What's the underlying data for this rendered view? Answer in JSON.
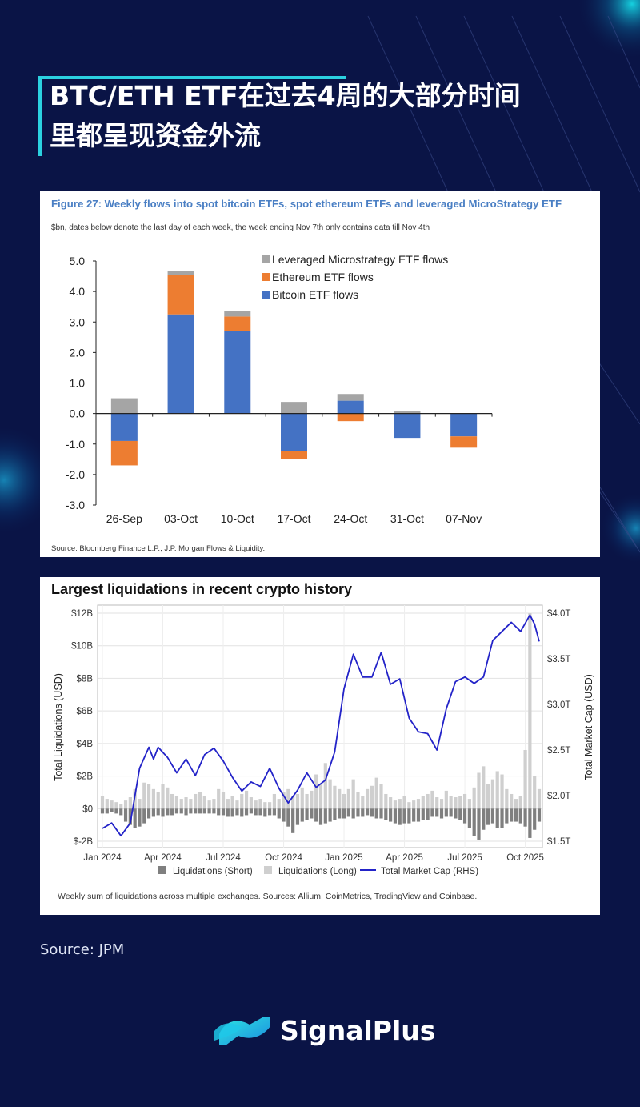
{
  "page": {
    "title_lines": [
      "BTC/ETH ETF在过去4周的大部分时间",
      "里都呈现资金外流"
    ],
    "source_note": "Source: JPM",
    "brand": "SignalPlus",
    "colors": {
      "background": "#0a1446",
      "accent": "#2bd1e0"
    }
  },
  "figure1": {
    "title": "Figure 27: Weekly flows into spot bitcoin ETFs, spot ethereum ETFs and leveraged MicroStrategy ETF",
    "subtitle": "$bn, dates below denote the last day of each week, the week ending Nov 7th only contains data till Nov 4th",
    "source": "Source: Bloomberg Finance L.P., J.P. Morgan Flows & Liquidity."
  },
  "figure2": {
    "title": "Largest liquidations in recent crypto history",
    "source": "Weekly sum of liquidations across multiple exchanges. Sources: Allium, CoinMetrics, TradingView and Coinbase."
  },
  "chart_data": [
    {
      "type": "bar",
      "stacked": true,
      "categories": [
        "26-Sep",
        "03-Oct",
        "10-Oct",
        "17-Oct",
        "24-Oct",
        "31-Oct",
        "07-Nov"
      ],
      "series": [
        {
          "name": "Bitcoin ETF flows",
          "color": "#4472c4",
          "values": [
            -0.9,
            3.25,
            2.7,
            -1.22,
            0.42,
            -0.8,
            -0.75
          ]
        },
        {
          "name": "Ethereum ETF flows",
          "color": "#ed7d31",
          "values": [
            -0.8,
            1.28,
            0.48,
            -0.28,
            -0.25,
            0.0,
            -0.37
          ]
        },
        {
          "name": "Leveraged Microstrategy ETF flows",
          "color": "#a5a5a5",
          "values": [
            0.5,
            0.13,
            0.18,
            0.38,
            0.22,
            0.08,
            0.0
          ]
        }
      ],
      "yticks": [
        "5.0",
        "4.0",
        "3.0",
        "2.0",
        "1.0",
        "0.0",
        "-1.0",
        "-2.0",
        "-3.0"
      ],
      "ylim": [
        -3,
        5
      ],
      "legend_position": "top"
    },
    {
      "type": "bar+line",
      "xticks": [
        "Jan 2024",
        "Apr 2024",
        "Jul 2024",
        "Oct 2024",
        "Jan 2025",
        "Apr 2025",
        "Jul 2025",
        "Oct 2025"
      ],
      "yticks_left": [
        "$12B",
        "$10B",
        "$8B",
        "$6B",
        "$4B",
        "$2B",
        "$0",
        "$-2B"
      ],
      "yticks_right": [
        "$4.0T",
        "$3.5T",
        "$3.0T",
        "$2.5T",
        "$2.0T",
        "$1.5T"
      ],
      "ylabel_left": "Total Liquidations (USD)",
      "ylabel_right": "Total Market Cap (USD)",
      "ylim_left": [
        -2,
        12
      ],
      "ylim_right": [
        1.5,
        4.0
      ],
      "legend": [
        "Liquidations (Short)",
        "Liquidations (Long)",
        "Total Market Cap (RHS)"
      ],
      "colors": {
        "short": "#7f7f7f",
        "long": "#cfcfcf",
        "market_cap": "#2323c8"
      },
      "weeks": 95,
      "long_liquidations": [
        0.8,
        0.6,
        0.5,
        0.4,
        0.3,
        0.5,
        0.7,
        1.2,
        0.6,
        1.6,
        1.5,
        1.2,
        1.0,
        1.5,
        1.3,
        0.9,
        0.8,
        0.6,
        0.7,
        0.6,
        0.9,
        1.0,
        0.8,
        0.5,
        0.6,
        1.2,
        1.0,
        0.6,
        0.8,
        0.5,
        0.9,
        1.1,
        0.7,
        0.5,
        0.6,
        0.4,
        0.4,
        0.9,
        0.6,
        1.0,
        1.2,
        0.8,
        0.9,
        1.3,
        0.9,
        1.1,
        2.1,
        1.5,
        2.8,
        1.8,
        1.4,
        1.2,
        0.9,
        1.2,
        1.8,
        1.0,
        0.8,
        1.2,
        1.4,
        1.9,
        1.5,
        0.9,
        0.7,
        0.5,
        0.6,
        0.8,
        0.4,
        0.5,
        0.6,
        0.8,
        0.9,
        1.1,
        0.7,
        0.6,
        1.1,
        0.8,
        0.7,
        0.8,
        0.9,
        0.6,
        1.3,
        2.2,
        2.6,
        1.5,
        1.8,
        2.3,
        2.1,
        1.2,
        0.9,
        0.6,
        0.8,
        3.6,
        12.0,
        2.0,
        1.2
      ],
      "short_liquidations": [
        -0.3,
        -0.3,
        -0.2,
        -0.3,
        -0.4,
        -0.8,
        -1.0,
        -1.2,
        -1.1,
        -0.9,
        -0.6,
        -0.5,
        -0.4,
        -0.5,
        -0.4,
        -0.4,
        -0.3,
        -0.3,
        -0.4,
        -0.3,
        -0.3,
        -0.3,
        -0.3,
        -0.3,
        -0.3,
        -0.4,
        -0.4,
        -0.5,
        -0.5,
        -0.4,
        -0.5,
        -0.4,
        -0.3,
        -0.4,
        -0.4,
        -0.5,
        -0.4,
        -0.4,
        -0.6,
        -0.8,
        -1.1,
        -1.5,
        -1.0,
        -0.8,
        -0.7,
        -0.6,
        -0.8,
        -1.0,
        -0.9,
        -0.8,
        -0.7,
        -0.6,
        -0.6,
        -0.5,
        -0.6,
        -0.5,
        -0.5,
        -0.4,
        -0.5,
        -0.6,
        -0.6,
        -0.7,
        -0.8,
        -0.9,
        -1.0,
        -0.9,
        -0.9,
        -0.8,
        -0.8,
        -0.7,
        -0.7,
        -0.5,
        -0.5,
        -0.6,
        -0.5,
        -0.5,
        -0.6,
        -0.7,
        -0.9,
        -1.2,
        -1.7,
        -1.9,
        -1.3,
        -1.0,
        -0.9,
        -1.2,
        -1.2,
        -0.9,
        -0.8,
        -0.8,
        -0.9,
        -1.1,
        -1.8,
        -1.3,
        -0.8
      ],
      "market_cap": [
        {
          "x": 0,
          "y": 1.64
        },
        {
          "x": 2,
          "y": 1.7
        },
        {
          "x": 4,
          "y": 1.56
        },
        {
          "x": 6,
          "y": 1.7
        },
        {
          "x": 8,
          "y": 2.3
        },
        {
          "x": 10,
          "y": 2.53
        },
        {
          "x": 11,
          "y": 2.4
        },
        {
          "x": 12,
          "y": 2.53
        },
        {
          "x": 14,
          "y": 2.42
        },
        {
          "x": 16,
          "y": 2.25
        },
        {
          "x": 18,
          "y": 2.4
        },
        {
          "x": 20,
          "y": 2.22
        },
        {
          "x": 22,
          "y": 2.45
        },
        {
          "x": 24,
          "y": 2.52
        },
        {
          "x": 26,
          "y": 2.38
        },
        {
          "x": 28,
          "y": 2.2
        },
        {
          "x": 30,
          "y": 2.05
        },
        {
          "x": 32,
          "y": 2.15
        },
        {
          "x": 34,
          "y": 2.1
        },
        {
          "x": 36,
          "y": 2.3
        },
        {
          "x": 38,
          "y": 2.08
        },
        {
          "x": 40,
          "y": 1.92
        },
        {
          "x": 42,
          "y": 2.06
        },
        {
          "x": 44,
          "y": 2.25
        },
        {
          "x": 46,
          "y": 2.09
        },
        {
          "x": 48,
          "y": 2.17
        },
        {
          "x": 50,
          "y": 2.48
        },
        {
          "x": 52,
          "y": 3.17
        },
        {
          "x": 54,
          "y": 3.55
        },
        {
          "x": 56,
          "y": 3.3
        },
        {
          "x": 58,
          "y": 3.3
        },
        {
          "x": 60,
          "y": 3.57
        },
        {
          "x": 62,
          "y": 3.22
        },
        {
          "x": 64,
          "y": 3.28
        },
        {
          "x": 66,
          "y": 2.85
        },
        {
          "x": 68,
          "y": 2.7
        },
        {
          "x": 70,
          "y": 2.68
        },
        {
          "x": 72,
          "y": 2.5
        },
        {
          "x": 74,
          "y": 2.95
        },
        {
          "x": 76,
          "y": 3.25
        },
        {
          "x": 78,
          "y": 3.3
        },
        {
          "x": 80,
          "y": 3.23
        },
        {
          "x": 82,
          "y": 3.3
        },
        {
          "x": 84,
          "y": 3.7
        },
        {
          "x": 86,
          "y": 3.8
        },
        {
          "x": 88,
          "y": 3.9
        },
        {
          "x": 90,
          "y": 3.8
        },
        {
          "x": 92,
          "y": 3.98
        },
        {
          "x": 93,
          "y": 3.88
        },
        {
          "x": 94,
          "y": 3.69
        }
      ]
    }
  ]
}
